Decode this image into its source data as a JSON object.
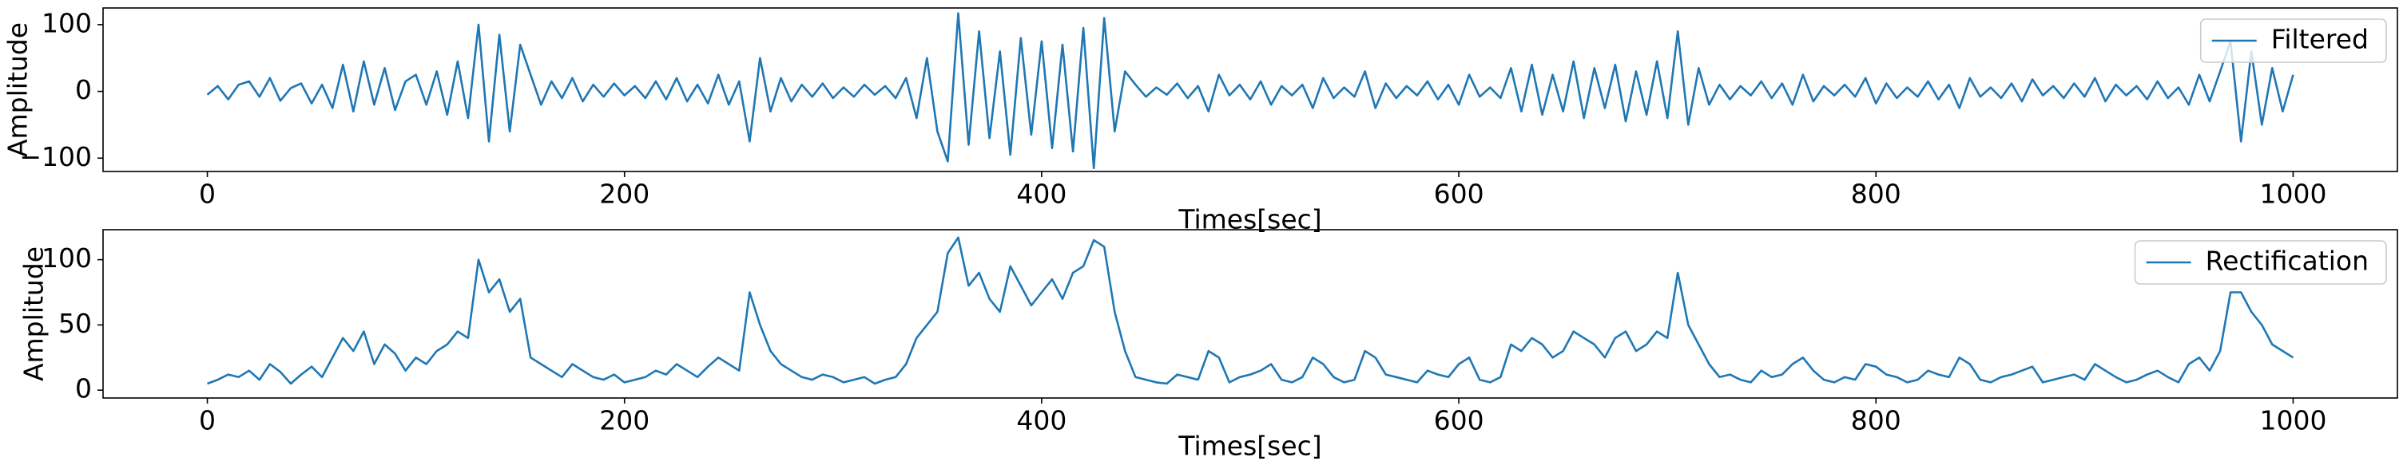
{
  "chart_data": [
    {
      "type": "line",
      "xlabel": "Times[sec]",
      "ylabel": "Amplitude",
      "legend": "upper right",
      "xlim": [
        -50,
        1050
      ],
      "ylim": [
        -120,
        125
      ],
      "xticks": [
        0,
        200,
        400,
        600,
        800,
        1000
      ],
      "yticks": [
        {
          "value": -100,
          "label": "−100"
        },
        0,
        100
      ],
      "x": [
        0,
        5,
        10,
        15,
        20,
        25,
        30,
        35,
        40,
        45,
        50,
        55,
        60,
        65,
        70,
        75,
        80,
        85,
        90,
        95,
        100,
        105,
        110,
        115,
        120,
        125,
        130,
        135,
        140,
        145,
        150,
        155,
        160,
        165,
        170,
        175,
        180,
        185,
        190,
        195,
        200,
        205,
        210,
        215,
        220,
        225,
        230,
        235,
        240,
        245,
        250,
        255,
        260,
        265,
        270,
        275,
        280,
        285,
        290,
        295,
        300,
        305,
        310,
        315,
        320,
        325,
        330,
        335,
        340,
        345,
        350,
        355,
        360,
        365,
        370,
        375,
        380,
        385,
        390,
        395,
        400,
        405,
        410,
        415,
        420,
        425,
        430,
        435,
        440,
        445,
        450,
        455,
        460,
        465,
        470,
        475,
        480,
        485,
        490,
        495,
        500,
        505,
        510,
        515,
        520,
        525,
        530,
        535,
        540,
        545,
        550,
        555,
        560,
        565,
        570,
        575,
        580,
        585,
        590,
        595,
        600,
        605,
        610,
        615,
        620,
        625,
        630,
        635,
        640,
        645,
        650,
        655,
        660,
        665,
        670,
        675,
        680,
        685,
        690,
        695,
        700,
        705,
        710,
        715,
        720,
        725,
        730,
        735,
        740,
        745,
        750,
        755,
        760,
        765,
        770,
        775,
        780,
        785,
        790,
        795,
        800,
        805,
        810,
        815,
        820,
        825,
        830,
        835,
        840,
        845,
        850,
        855,
        860,
        865,
        870,
        875,
        880,
        885,
        890,
        895,
        900,
        905,
        910,
        915,
        920,
        925,
        930,
        935,
        940,
        945,
        950,
        955,
        960,
        965,
        970,
        975,
        980,
        985,
        990,
        995,
        1000
      ],
      "series": [
        {
          "name": "Filtered",
          "color": "#1f77b4",
          "values": [
            -5,
            8,
            -12,
            10,
            15,
            -8,
            20,
            -14,
            5,
            12,
            -18,
            10,
            -25,
            40,
            -30,
            45,
            -20,
            35,
            -28,
            15,
            25,
            -20,
            30,
            -35,
            45,
            -40,
            100,
            -75,
            85,
            -60,
            70,
            25,
            -20,
            15,
            -10,
            20,
            -15,
            10,
            -8,
            12,
            -6,
            8,
            -10,
            15,
            -12,
            20,
            -15,
            10,
            -18,
            25,
            -20,
            15,
            -75,
            50,
            -30,
            20,
            -15,
            10,
            -8,
            12,
            -10,
            6,
            -8,
            10,
            -5,
            8,
            -10,
            20,
            -40,
            50,
            -60,
            -105,
            117,
            -80,
            90,
            -70,
            60,
            -95,
            80,
            -65,
            75,
            -85,
            70,
            -90,
            95,
            -115,
            110,
            -60,
            30,
            10,
            -8,
            6,
            -5,
            12,
            -10,
            8,
            -30,
            25,
            -6,
            10,
            -12,
            15,
            -20,
            8,
            -6,
            10,
            -25,
            20,
            -10,
            6,
            -8,
            30,
            -25,
            12,
            -10,
            8,
            -6,
            15,
            -12,
            10,
            -20,
            25,
            -8,
            6,
            -10,
            35,
            -30,
            40,
            -35,
            25,
            -30,
            45,
            -40,
            35,
            -25,
            40,
            -45,
            30,
            -35,
            45,
            -40,
            90,
            -50,
            35,
            -20,
            10,
            -12,
            8,
            -6,
            15,
            -10,
            12,
            -20,
            25,
            -15,
            8,
            -6,
            10,
            -8,
            20,
            -18,
            12,
            -10,
            6,
            -8,
            15,
            -12,
            10,
            -25,
            20,
            -8,
            6,
            -10,
            12,
            -15,
            18,
            -6,
            8,
            -10,
            12,
            -8,
            20,
            -15,
            10,
            -6,
            8,
            -12,
            15,
            -10,
            6,
            -20,
            25,
            -15,
            30,
            75,
            -75,
            60,
            -50,
            35,
            -30,
            25
          ]
        }
      ]
    },
    {
      "type": "line",
      "xlabel": "Times[sec]",
      "ylabel": "Amplitude",
      "legend": "upper right",
      "xlim": [
        -50,
        1050
      ],
      "ylim": [
        -6,
        123
      ],
      "xticks": [
        0,
        200,
        400,
        600,
        800,
        1000
      ],
      "yticks": [
        0,
        50,
        100
      ],
      "x": [
        0,
        5,
        10,
        15,
        20,
        25,
        30,
        35,
        40,
        45,
        50,
        55,
        60,
        65,
        70,
        75,
        80,
        85,
        90,
        95,
        100,
        105,
        110,
        115,
        120,
        125,
        130,
        135,
        140,
        145,
        150,
        155,
        160,
        165,
        170,
        175,
        180,
        185,
        190,
        195,
        200,
        205,
        210,
        215,
        220,
        225,
        230,
        235,
        240,
        245,
        250,
        255,
        260,
        265,
        270,
        275,
        280,
        285,
        290,
        295,
        300,
        305,
        310,
        315,
        320,
        325,
        330,
        335,
        340,
        345,
        350,
        355,
        360,
        365,
        370,
        375,
        380,
        385,
        390,
        395,
        400,
        405,
        410,
        415,
        420,
        425,
        430,
        435,
        440,
        445,
        450,
        455,
        460,
        465,
        470,
        475,
        480,
        485,
        490,
        495,
        500,
        505,
        510,
        515,
        520,
        525,
        530,
        535,
        540,
        545,
        550,
        555,
        560,
        565,
        570,
        575,
        580,
        585,
        590,
        595,
        600,
        605,
        610,
        615,
        620,
        625,
        630,
        635,
        640,
        645,
        650,
        655,
        660,
        665,
        670,
        675,
        680,
        685,
        690,
        695,
        700,
        705,
        710,
        715,
        720,
        725,
        730,
        735,
        740,
        745,
        750,
        755,
        760,
        765,
        770,
        775,
        780,
        785,
        790,
        795,
        800,
        805,
        810,
        815,
        820,
        825,
        830,
        835,
        840,
        845,
        850,
        855,
        860,
        865,
        870,
        875,
        880,
        885,
        890,
        895,
        900,
        905,
        910,
        915,
        920,
        925,
        930,
        935,
        940,
        945,
        950,
        955,
        960,
        965,
        970,
        975,
        980,
        985,
        990,
        995,
        1000
      ],
      "series": [
        {
          "name": "Rectification",
          "color": "#1f77b4",
          "values": [
            5,
            8,
            12,
            10,
            15,
            8,
            20,
            14,
            5,
            12,
            18,
            10,
            25,
            40,
            30,
            45,
            20,
            35,
            28,
            15,
            25,
            20,
            30,
            35,
            45,
            40,
            100,
            75,
            85,
            60,
            70,
            25,
            20,
            15,
            10,
            20,
            15,
            10,
            8,
            12,
            6,
            8,
            10,
            15,
            12,
            20,
            15,
            10,
            18,
            25,
            20,
            15,
            75,
            50,
            30,
            20,
            15,
            10,
            8,
            12,
            10,
            6,
            8,
            10,
            5,
            8,
            10,
            20,
            40,
            50,
            60,
            105,
            117,
            80,
            90,
            70,
            60,
            95,
            80,
            65,
            75,
            85,
            70,
            90,
            95,
            115,
            110,
            60,
            30,
            10,
            8,
            6,
            5,
            12,
            10,
            8,
            30,
            25,
            6,
            10,
            12,
            15,
            20,
            8,
            6,
            10,
            25,
            20,
            10,
            6,
            8,
            30,
            25,
            12,
            10,
            8,
            6,
            15,
            12,
            10,
            20,
            25,
            8,
            6,
            10,
            35,
            30,
            40,
            35,
            25,
            30,
            45,
            40,
            35,
            25,
            40,
            45,
            30,
            35,
            45,
            40,
            90,
            50,
            35,
            20,
            10,
            12,
            8,
            6,
            15,
            10,
            12,
            20,
            25,
            15,
            8,
            6,
            10,
            8,
            20,
            18,
            12,
            10,
            6,
            8,
            15,
            12,
            10,
            25,
            20,
            8,
            6,
            10,
            12,
            15,
            18,
            6,
            8,
            10,
            12,
            8,
            20,
            15,
            10,
            6,
            8,
            12,
            15,
            10,
            6,
            20,
            25,
            15,
            30,
            75,
            75,
            60,
            50,
            35,
            30,
            25
          ]
        }
      ]
    }
  ]
}
